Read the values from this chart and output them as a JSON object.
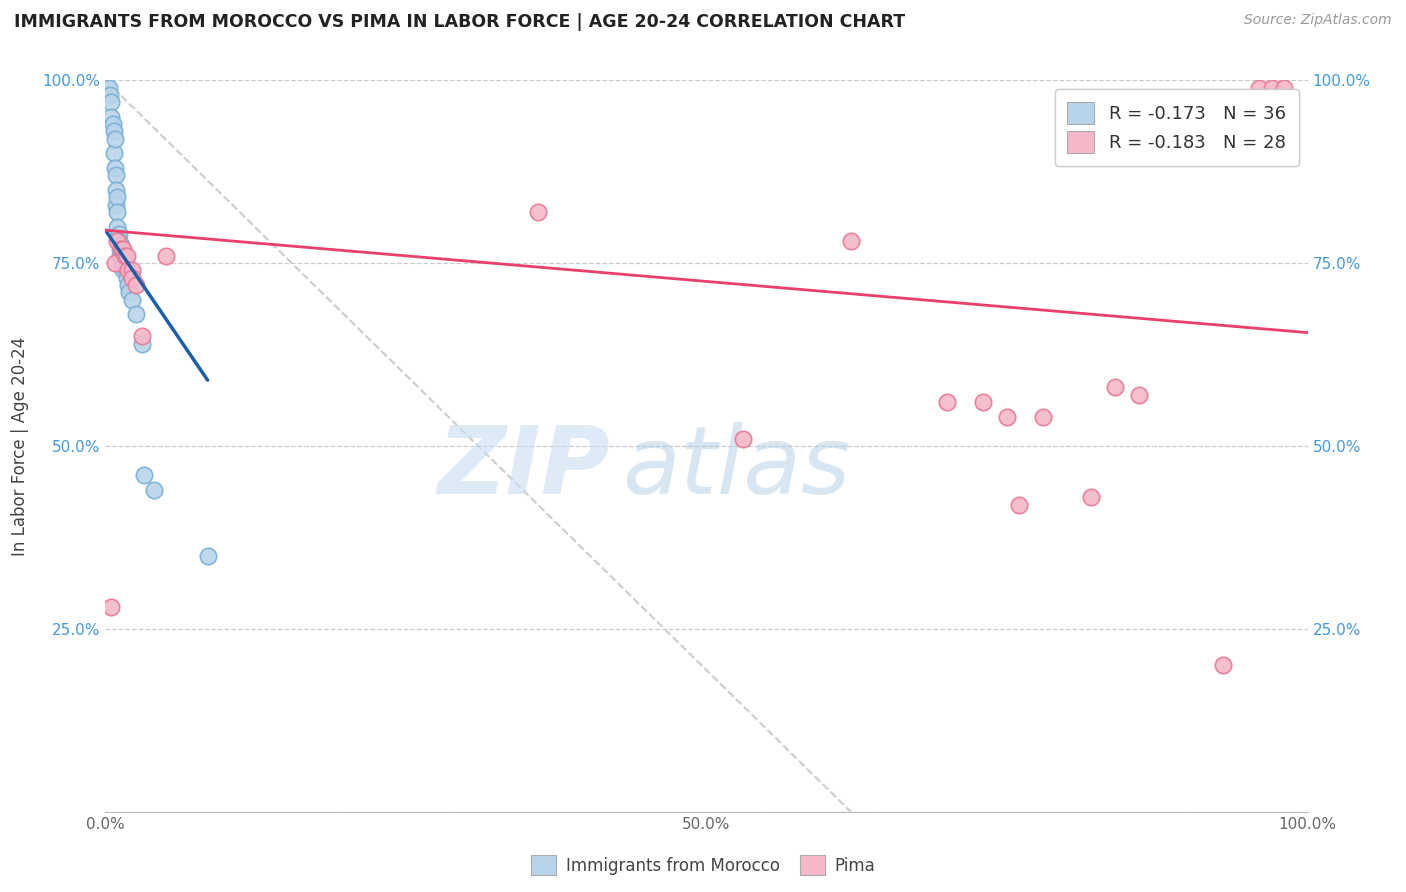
{
  "title": "IMMIGRANTS FROM MOROCCO VS PIMA IN LABOR FORCE | AGE 20-24 CORRELATION CHART",
  "source": "Source: ZipAtlas.com",
  "ylabel": "In Labor Force | Age 20-24",
  "xlim": [
    0.0,
    1.0
  ],
  "ylim": [
    0.0,
    1.0
  ],
  "x_ticks": [
    0.0,
    0.1,
    0.2,
    0.3,
    0.4,
    0.5,
    0.6,
    0.7,
    0.8,
    0.9,
    1.0
  ],
  "x_tick_labels": [
    "0.0%",
    "",
    "",
    "",
    "",
    "50.0%",
    "",
    "",
    "",
    "",
    "100.0%"
  ],
  "y_ticks": [
    0.0,
    0.25,
    0.5,
    0.75,
    1.0
  ],
  "y_tick_labels": [
    "",
    "25.0%",
    "50.0%",
    "75.0%",
    "100.0%"
  ],
  "legend_r1": "-0.173",
  "legend_n1": "36",
  "legend_r2": "-0.183",
  "legend_n2": "28",
  "color_blue_fill": "#b8d4ea",
  "color_pink_fill": "#f5b8c8",
  "color_blue_edge": "#7ab0d4",
  "color_pink_edge": "#e87898",
  "color_blue_line": "#1a5fa8",
  "color_pink_line": "#e8406a",
  "color_dashed": "#c0c0c0",
  "tick_color": "#4499dd",
  "watermark_color": "#c8dff0",
  "morocco_x": [
    0.003,
    0.004,
    0.005,
    0.005,
    0.006,
    0.007,
    0.007,
    0.008,
    0.008,
    0.009,
    0.009,
    0.009,
    0.01,
    0.01,
    0.01,
    0.011,
    0.011,
    0.012,
    0.012,
    0.013,
    0.013,
    0.014,
    0.014,
    0.015,
    0.015,
    0.016,
    0.017,
    0.018,
    0.019,
    0.02,
    0.022,
    0.025,
    0.03,
    0.032,
    0.04,
    0.085
  ],
  "morocco_y": [
    0.99,
    0.98,
    0.97,
    0.95,
    0.94,
    0.93,
    0.9,
    0.92,
    0.88,
    0.87,
    0.85,
    0.83,
    0.84,
    0.82,
    0.8,
    0.79,
    0.78,
    0.77,
    0.76,
    0.775,
    0.77,
    0.76,
    0.75,
    0.76,
    0.74,
    0.75,
    0.74,
    0.73,
    0.72,
    0.71,
    0.7,
    0.68,
    0.64,
    0.46,
    0.44,
    0.35
  ],
  "pima_x": [
    0.005,
    0.008,
    0.01,
    0.013,
    0.015,
    0.016,
    0.018,
    0.019,
    0.022,
    0.022,
    0.025,
    0.03,
    0.05,
    0.36,
    0.53,
    0.62,
    0.7,
    0.73,
    0.75,
    0.76,
    0.78,
    0.82,
    0.84,
    0.86,
    0.93,
    0.96,
    0.97,
    0.98
  ],
  "pima_y": [
    0.28,
    0.75,
    0.78,
    0.77,
    0.77,
    0.76,
    0.76,
    0.74,
    0.74,
    0.73,
    0.72,
    0.65,
    0.76,
    0.82,
    0.51,
    0.78,
    0.56,
    0.56,
    0.54,
    0.42,
    0.54,
    0.43,
    0.58,
    0.57,
    0.2,
    0.99,
    0.99,
    0.99
  ],
  "blue_line_x": [
    0.0,
    0.085
  ],
  "blue_line_y": [
    0.795,
    0.59
  ],
  "pink_line_x": [
    0.0,
    1.0
  ],
  "pink_line_y": [
    0.795,
    0.655
  ],
  "dashed_line_x": [
    0.0,
    0.62
  ],
  "dashed_line_y": [
    1.0,
    0.0
  ]
}
